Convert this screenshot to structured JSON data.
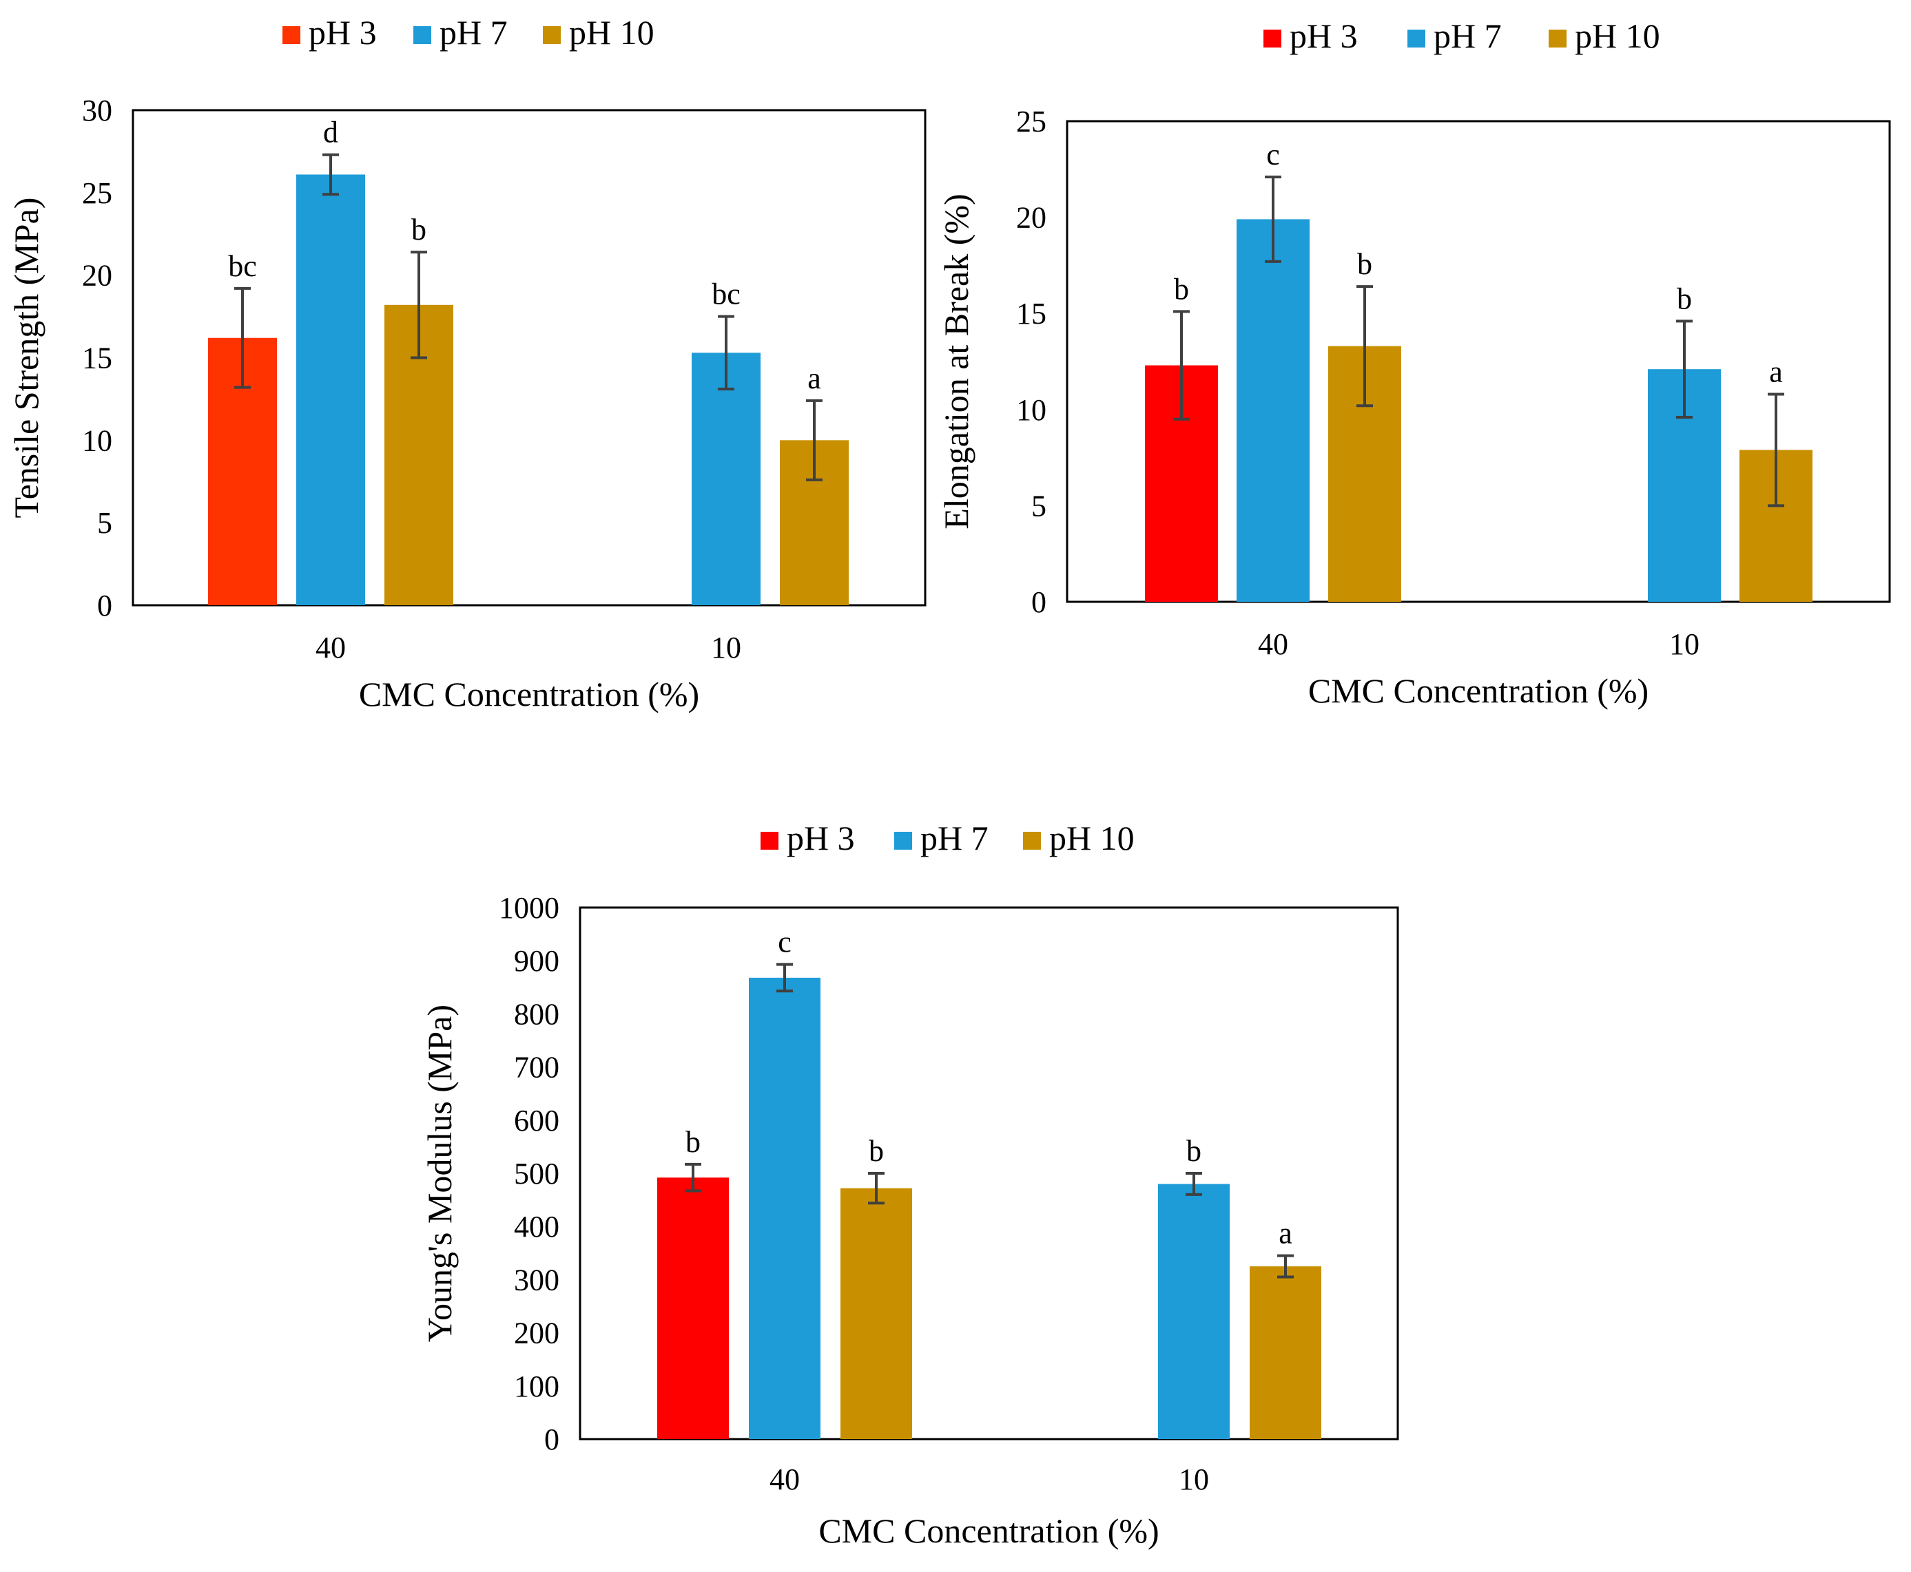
{
  "colors": {
    "pH 3": "#ff0000",
    "pH 3 (tensile)": "#ff3300",
    "pH 7": "#1e9cd8",
    "pH 10": "#c89000",
    "error_bar": "#404040",
    "axis": "#000000"
  },
  "chart_data": [
    {
      "type": "bar",
      "legend": [
        "pH 3",
        "pH 7",
        "pH 10"
      ],
      "legend_position": "top",
      "categories": [
        "40",
        "10"
      ],
      "xlabel": "CMC Concentration (%)",
      "ylabel": "Tensile Strength (MPa)",
      "ylim": [
        0,
        30
      ],
      "yticks": [
        "0",
        "5",
        "10",
        "15",
        "20",
        "25",
        "30"
      ],
      "grid": false,
      "series": [
        {
          "name": "pH 3",
          "values": [
            16.2,
            null
          ],
          "errors": [
            3.0,
            null
          ],
          "labels": [
            "bc",
            ""
          ]
        },
        {
          "name": "pH 7",
          "values": [
            26.1,
            15.3
          ],
          "errors": [
            1.2,
            2.2
          ],
          "labels": [
            "d",
            "bc"
          ]
        },
        {
          "name": "pH 10",
          "values": [
            18.2,
            10.0
          ],
          "errors": [
            3.2,
            2.4
          ],
          "labels": [
            "b",
            "a"
          ]
        }
      ]
    },
    {
      "type": "bar",
      "legend": [
        "pH 3",
        "pH 7",
        "pH 10"
      ],
      "legend_position": "top",
      "categories": [
        "40",
        "10"
      ],
      "xlabel": "CMC Concentration (%)",
      "ylabel": "Elongation at Break (%)",
      "ylim": [
        0,
        25
      ],
      "yticks": [
        "0",
        "5",
        "10",
        "15",
        "20",
        "25"
      ],
      "grid": false,
      "series": [
        {
          "name": "pH 3",
          "values": [
            12.3,
            null
          ],
          "errors": [
            2.8,
            null
          ],
          "labels": [
            "b",
            ""
          ]
        },
        {
          "name": "pH 7",
          "values": [
            19.9,
            12.1
          ],
          "errors": [
            2.2,
            2.5
          ],
          "labels": [
            "c",
            "b"
          ]
        },
        {
          "name": "pH 10",
          "values": [
            13.3,
            7.9
          ],
          "errors": [
            3.1,
            2.9
          ],
          "labels": [
            "b",
            "a"
          ]
        }
      ]
    },
    {
      "type": "bar",
      "legend": [
        "pH 3",
        "pH 7",
        "pH 10"
      ],
      "legend_position": "top",
      "categories": [
        "40",
        "10"
      ],
      "xlabel": "CMC Concentration (%)",
      "ylabel": "Young's Modulus (MPa)",
      "ylim": [
        0,
        1000
      ],
      "yticks": [
        "0",
        "100",
        "200",
        "300",
        "400",
        "500",
        "600",
        "700",
        "800",
        "900",
        "1000"
      ],
      "grid": false,
      "series": [
        {
          "name": "pH 3",
          "values": [
            492,
            null
          ],
          "errors": [
            25,
            null
          ],
          "labels": [
            "b",
            ""
          ]
        },
        {
          "name": "pH 7",
          "values": [
            868,
            480
          ],
          "errors": [
            25,
            20
          ],
          "labels": [
            "c",
            "b"
          ]
        },
        {
          "name": "pH 10",
          "values": [
            472,
            325
          ],
          "errors": [
            28,
            20
          ],
          "labels": [
            "b",
            "a"
          ]
        }
      ]
    }
  ]
}
